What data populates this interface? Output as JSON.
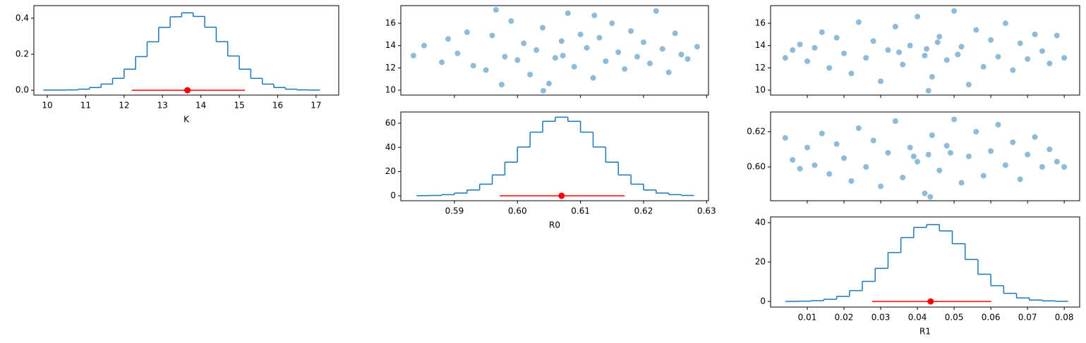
{
  "chart_data": [
    {
      "type": "histogram",
      "xlabel": "K",
      "color": "#1f77b4",
      "bins": [
        9.9,
        10.2,
        10.5,
        10.8,
        11.1,
        11.4,
        11.7,
        12.0,
        12.3,
        12.6,
        12.9,
        13.2,
        13.5,
        13.8,
        14.1,
        14.4,
        14.7,
        15.0,
        15.3,
        15.6,
        15.9,
        16.2,
        16.5,
        16.8,
        17.1
      ],
      "values": [
        0.001,
        0.001,
        0.002,
        0.006,
        0.015,
        0.034,
        0.066,
        0.117,
        0.187,
        0.269,
        0.349,
        0.408,
        0.43,
        0.41,
        0.35,
        0.27,
        0.19,
        0.117,
        0.066,
        0.034,
        0.015,
        0.006,
        0.002,
        0.001
      ],
      "interval": {
        "x": 13.65,
        "lower": 12.2,
        "upper": 15.15,
        "y": 0,
        "color": "#ff0000"
      },
      "xlim": [
        9.65,
        17.59
      ],
      "ylim": [
        -0.027,
        0.47
      ],
      "xticks": [
        10,
        11,
        12,
        13,
        14,
        15,
        16,
        17
      ],
      "yticks": [
        {
          "value": 0,
          "label": "0.0"
        },
        0.2,
        0.4
      ],
      "show_xtick_labels": true
    },
    {
      "type": "scatter",
      "color": "#1f77b4",
      "alpha": 0.5,
      "x": [
        0.5835,
        0.5852,
        0.588,
        0.589,
        0.5905,
        0.592,
        0.593,
        0.595,
        0.596,
        0.598,
        0.599,
        0.6,
        0.601,
        0.602,
        0.603,
        0.604,
        0.605,
        0.606,
        0.607,
        0.6072,
        0.608,
        0.609,
        0.61,
        0.611,
        0.612,
        0.613,
        0.614,
        0.615,
        0.616,
        0.617,
        0.618,
        0.619,
        0.62,
        0.621,
        0.622,
        0.623,
        0.624,
        0.625,
        0.626,
        0.627,
        0.6285,
        0.5975,
        0.6041,
        0.6122,
        0.5966
      ],
      "values": [
        13.1,
        14.0,
        12.5,
        14.6,
        13.3,
        15.2,
        12.2,
        11.8,
        14.9,
        13.0,
        16.2,
        12.7,
        14.2,
        11.4,
        13.6,
        15.6,
        10.6,
        12.9,
        14.4,
        13.1,
        16.9,
        12.1,
        15.0,
        13.8,
        11.1,
        14.7,
        12.6,
        16.0,
        13.4,
        11.9,
        15.3,
        13.0,
        14.3,
        12.4,
        17.1,
        13.7,
        11.6,
        15.1,
        13.2,
        12.8,
        13.9,
        10.5,
        9.95,
        16.7,
        17.2
      ],
      "xlim": [
        0.5815,
        0.6303
      ],
      "ylim": [
        9.56,
        17.58
      ],
      "xticks": [
        0.59,
        0.6,
        0.61,
        0.62,
        0.63
      ],
      "yticks": [
        10,
        12,
        14,
        16
      ],
      "show_xtick_labels": false
    },
    {
      "type": "histogram",
      "xlabel": "R0",
      "color": "#1f77b4",
      "bins": [
        0.584,
        0.586,
        0.588,
        0.59,
        0.592,
        0.594,
        0.596,
        0.598,
        0.6,
        0.602,
        0.604,
        0.606,
        0.608,
        0.61,
        0.612,
        0.614,
        0.616,
        0.618,
        0.62,
        0.622,
        0.624,
        0.626,
        0.628
      ],
      "values": [
        0.1,
        0.3,
        0.9,
        2.2,
        4.8,
        9.6,
        17.2,
        27.8,
        40.3,
        52.6,
        61.6,
        65,
        61.6,
        52.6,
        40.3,
        27.8,
        17.2,
        9.6,
        4.8,
        2.2,
        0.9,
        0.3
      ],
      "interval": {
        "x": 0.607,
        "lower": 0.5972,
        "upper": 0.617,
        "y": 0,
        "color": "#ff0000"
      },
      "xlim": [
        0.5815,
        0.6303
      ],
      "ylim": [
        -4.1,
        69.3
      ],
      "xticks": [
        0.59,
        {
          "value": 0.6,
          "label": "0.60"
        },
        0.61,
        0.62,
        0.63
      ],
      "yticks": [
        0,
        20,
        40,
        60
      ],
      "show_xtick_labels": true
    },
    {
      "type": "scatter",
      "color": "#1f77b4",
      "alpha": 0.5,
      "x": [
        0.004,
        0.006,
        0.008,
        0.01,
        0.012,
        0.014,
        0.016,
        0.018,
        0.02,
        0.022,
        0.024,
        0.026,
        0.028,
        0.03,
        0.032,
        0.034,
        0.036,
        0.038,
        0.04,
        0.042,
        0.044,
        0.046,
        0.048,
        0.05,
        0.052,
        0.054,
        0.056,
        0.058,
        0.06,
        0.062,
        0.064,
        0.066,
        0.068,
        0.07,
        0.072,
        0.074,
        0.076,
        0.078,
        0.08,
        0.043,
        0.0425,
        0.035,
        0.051,
        0.0455
      ],
      "values": [
        12.9,
        13.6,
        14.1,
        12.6,
        13.8,
        15.2,
        12.0,
        14.7,
        13.3,
        11.5,
        16.1,
        12.9,
        14.4,
        10.8,
        13.6,
        15.7,
        12.3,
        14.0,
        16.6,
        13.1,
        11.2,
        14.8,
        12.7,
        17.1,
        13.9,
        10.5,
        15.4,
        12.1,
        14.5,
        13.0,
        16.0,
        11.8,
        14.2,
        12.8,
        15.0,
        13.5,
        12.4,
        14.9,
        12.9,
        9.95,
        13.7,
        13.4,
        13.2,
        14.3
      ],
      "xlim": [
        0.0,
        0.0842
      ],
      "ylim": [
        9.56,
        17.58
      ],
      "xticks": [
        0.01,
        0.02,
        0.03,
        0.04,
        0.05,
        0.06,
        0.07,
        0.08
      ],
      "yticks": [
        10,
        12,
        14,
        16
      ],
      "show_xtick_labels": false
    },
    {
      "type": "scatter",
      "color": "#1f77b4",
      "alpha": 0.5,
      "x": [
        0.004,
        0.006,
        0.008,
        0.01,
        0.012,
        0.014,
        0.016,
        0.018,
        0.02,
        0.022,
        0.024,
        0.026,
        0.028,
        0.03,
        0.032,
        0.034,
        0.036,
        0.038,
        0.04,
        0.042,
        0.044,
        0.046,
        0.048,
        0.05,
        0.052,
        0.054,
        0.056,
        0.058,
        0.06,
        0.062,
        0.064,
        0.066,
        0.068,
        0.07,
        0.072,
        0.074,
        0.076,
        0.078,
        0.08,
        0.0435,
        0.043,
        0.039,
        0.049
      ],
      "values": [
        0.6165,
        0.604,
        0.599,
        0.611,
        0.601,
        0.619,
        0.596,
        0.613,
        0.605,
        0.592,
        0.622,
        0.6,
        0.615,
        0.589,
        0.608,
        0.626,
        0.594,
        0.611,
        0.603,
        0.585,
        0.618,
        0.598,
        0.612,
        0.627,
        0.591,
        0.606,
        0.62,
        0.595,
        0.609,
        0.624,
        0.601,
        0.614,
        0.593,
        0.607,
        0.617,
        0.6,
        0.61,
        0.603,
        0.6,
        0.583,
        0.607,
        0.606,
        0.608
      ],
      "xlim": [
        0.0,
        0.0842
      ],
      "ylim": [
        0.5808,
        0.6312
      ],
      "xticks": [
        0.01,
        0.02,
        0.03,
        0.04,
        0.05,
        0.06,
        0.07,
        0.08
      ],
      "yticks": [
        {
          "value": 0.6,
          "label": "0.60"
        },
        0.62
      ],
      "show_xtick_labels": false
    },
    {
      "type": "histogram",
      "xlabel": "R1",
      "color": "#1f77b4",
      "bins": [
        0.004,
        0.0075,
        0.011,
        0.0145,
        0.018,
        0.0215,
        0.025,
        0.0285,
        0.032,
        0.0355,
        0.039,
        0.0425,
        0.046,
        0.0495,
        0.053,
        0.0565,
        0.06,
        0.0635,
        0.067,
        0.0705,
        0.074,
        0.0775,
        0.081
      ],
      "values": [
        0.04,
        0.14,
        0.4,
        1.1,
        2.6,
        5.5,
        10.2,
        16.8,
        24.8,
        32.4,
        37.6,
        39,
        35.8,
        29.3,
        21.3,
        13.8,
        8.0,
        4.1,
        1.8,
        0.7,
        0.3,
        0.1
      ],
      "interval": {
        "x": 0.0436,
        "lower": 0.0277,
        "upper": 0.0601,
        "y": 0,
        "color": "#ff0000"
      },
      "xlim": [
        0.0,
        0.0842
      ],
      "ylim": [
        -2.86,
        42.9
      ],
      "xticks": [
        0.01,
        0.02,
        0.03,
        0.04,
        0.05,
        0.06,
        0.07,
        0.08
      ],
      "yticks": [
        0,
        20,
        40
      ],
      "show_xtick_labels": true
    }
  ]
}
